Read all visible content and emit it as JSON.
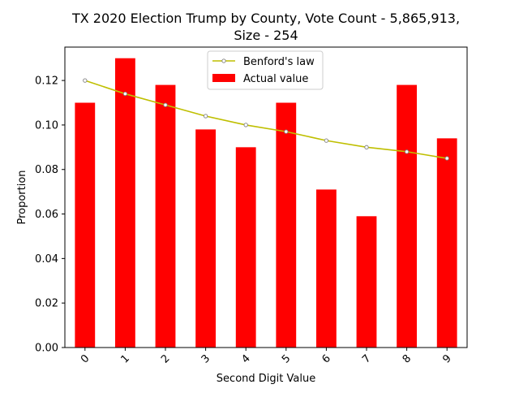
{
  "chart_data": {
    "type": "bar",
    "title_line1": "TX 2020 Election Trump by County,  Vote Count - 5,865,913,",
    "title_line2": "Size - 254",
    "xlabel": "Second Digit Value",
    "ylabel": "Proportion",
    "categories": [
      "0",
      "1",
      "2",
      "3",
      "4",
      "5",
      "6",
      "7",
      "8",
      "9"
    ],
    "ylim": [
      0,
      0.135
    ],
    "yticks": [
      0.0,
      0.02,
      0.04,
      0.06,
      0.08,
      0.1,
      0.12
    ],
    "ytick_labels": [
      "0.00",
      "0.02",
      "0.04",
      "0.06",
      "0.08",
      "0.10",
      "0.12"
    ],
    "grid": false,
    "legend_position": "top-center",
    "series": [
      {
        "name": "Actual value",
        "kind": "bar",
        "color": "#ff0000",
        "values": [
          0.11,
          0.13,
          0.118,
          0.098,
          0.09,
          0.11,
          0.071,
          0.059,
          0.118,
          0.094
        ]
      },
      {
        "name": "Benford's law",
        "kind": "line",
        "color": "#bfbf00",
        "marker_color": "#ffffff",
        "values": [
          0.12,
          0.114,
          0.109,
          0.104,
          0.1,
          0.097,
          0.093,
          0.09,
          0.088,
          0.085
        ]
      }
    ]
  }
}
